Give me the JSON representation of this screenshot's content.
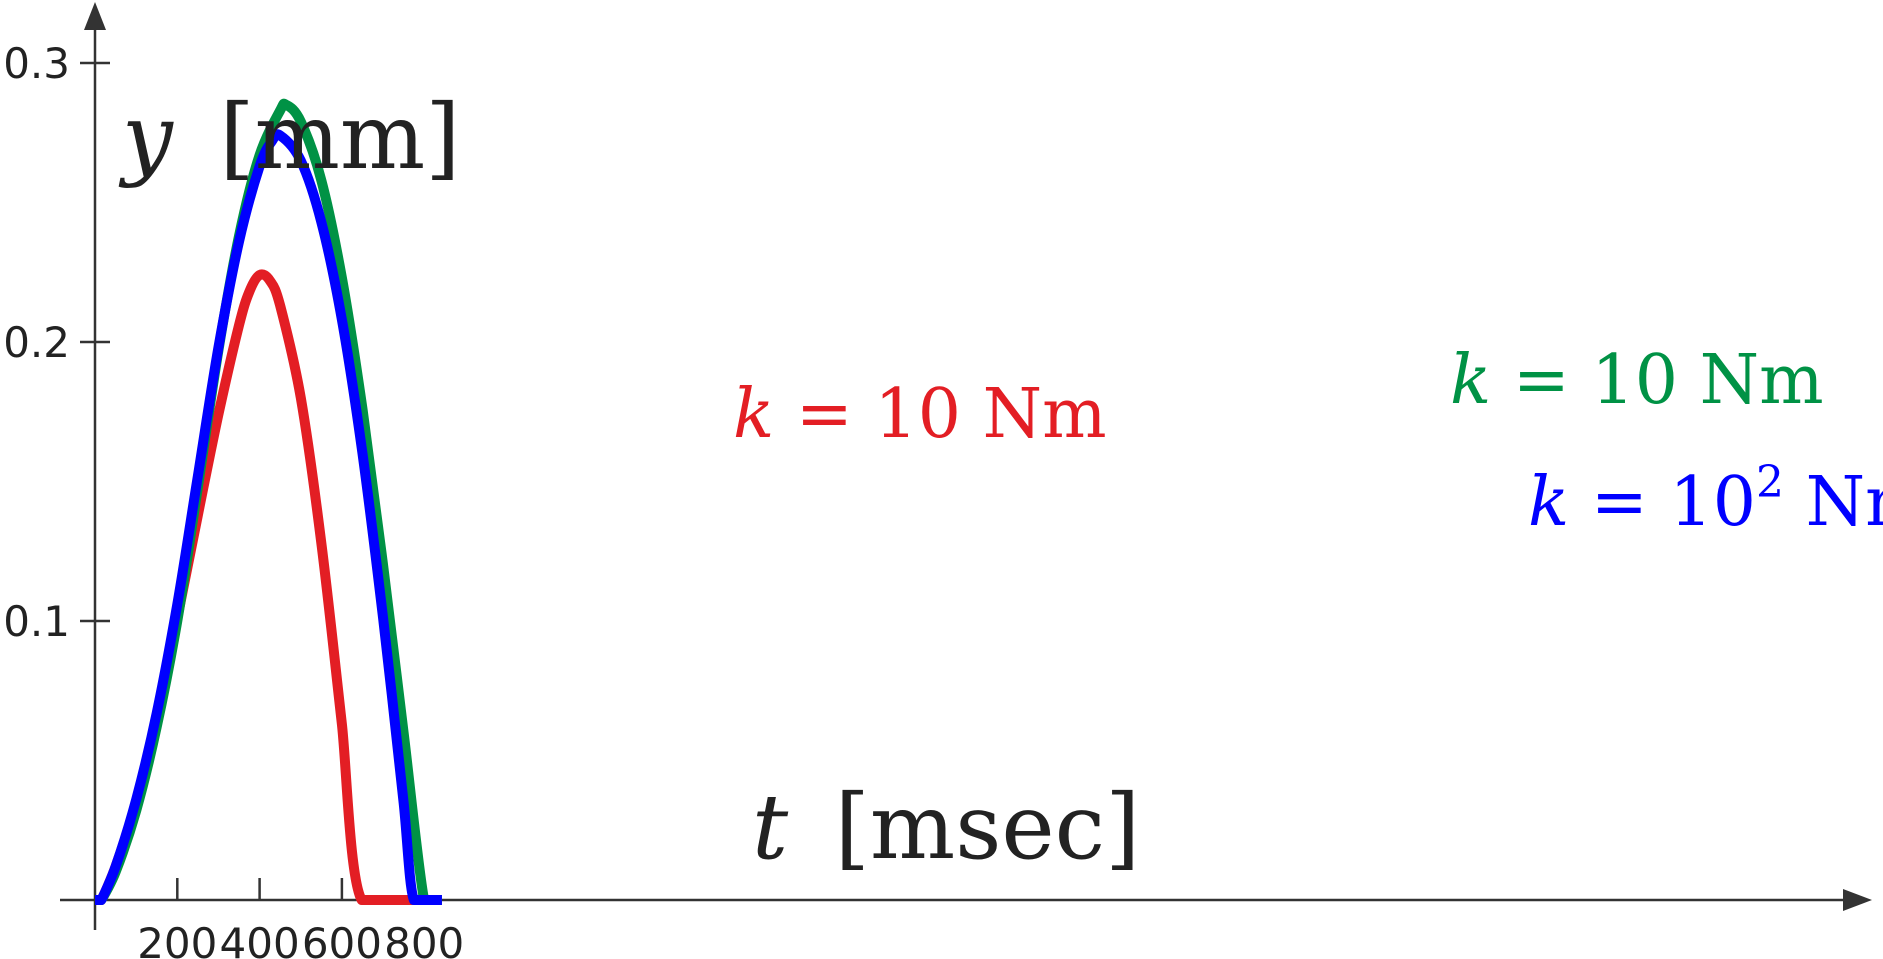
{
  "chart_data": {
    "type": "line",
    "xlabel": {
      "var": "t",
      "unit": "[msec]"
    },
    "ylabel": {
      "var": "y",
      "unit": "[mm]"
    },
    "xlim": [
      -3,
      852
    ],
    "ylim": [
      0,
      0.3
    ],
    "x_ticks": [
      200,
      400,
      600,
      800
    ],
    "x_tick_labels": [
      "200",
      "400",
      "600",
      "800"
    ],
    "y_ticks": [
      0.1,
      0.2,
      0.3
    ],
    "y_tick_labels": [
      "0.1",
      "0.2",
      "0.3"
    ],
    "grid": false,
    "legend": "inline labels",
    "series": [
      {
        "key": "red",
        "label_var": "k",
        "label_rest": " = 10  Nm",
        "label_sup": "",
        "label_tail": "",
        "color": "#e31e24",
        "points": [
          [
            0,
            0
          ],
          [
            15,
            0
          ],
          [
            50,
            0.012
          ],
          [
            100,
            0.035
          ],
          [
            150,
            0.065
          ],
          [
            200,
            0.101
          ],
          [
            250,
            0.138
          ],
          [
            300,
            0.174
          ],
          [
            350,
            0.206
          ],
          [
            375,
            0.218
          ],
          [
            400,
            0.224
          ],
          [
            425,
            0.222
          ],
          [
            450,
            0.213
          ],
          [
            500,
            0.18
          ],
          [
            550,
            0.128
          ],
          [
            600,
            0.063
          ],
          [
            648,
            0
          ],
          [
            843,
            0
          ]
        ]
      },
      {
        "key": "green",
        "label_var": "k",
        "label_rest": " = 10 Nm",
        "label_sup": "",
        "label_tail": "",
        "color": "#009245",
        "points": [
          [
            0,
            0
          ],
          [
            15,
            0
          ],
          [
            50,
            0.01
          ],
          [
            100,
            0.032
          ],
          [
            150,
            0.062
          ],
          [
            200,
            0.1
          ],
          [
            250,
            0.148
          ],
          [
            300,
            0.197
          ],
          [
            350,
            0.238
          ],
          [
            400,
            0.267
          ],
          [
            450,
            0.283
          ],
          [
            465,
            0.285
          ],
          [
            500,
            0.279
          ],
          [
            550,
            0.258
          ],
          [
            600,
            0.223
          ],
          [
            650,
            0.176
          ],
          [
            700,
            0.12
          ],
          [
            750,
            0.06
          ],
          [
            800,
            0
          ],
          [
            843,
            0
          ]
        ]
      },
      {
        "key": "blue",
        "label_var": "k",
        "label_rest": " = 10",
        "label_sup": "2",
        "label_tail": " Nm",
        "color": "#0000ff",
        "points": [
          [
            0,
            0
          ],
          [
            15,
            0
          ],
          [
            50,
            0.012
          ],
          [
            100,
            0.036
          ],
          [
            150,
            0.067
          ],
          [
            200,
            0.106
          ],
          [
            250,
            0.152
          ],
          [
            300,
            0.198
          ],
          [
            350,
            0.236
          ],
          [
            400,
            0.263
          ],
          [
            430,
            0.272
          ],
          [
            450,
            0.274
          ],
          [
            500,
            0.265
          ],
          [
            550,
            0.243
          ],
          [
            600,
            0.208
          ],
          [
            650,
            0.16
          ],
          [
            700,
            0.101
          ],
          [
            750,
            0.035
          ],
          [
            775,
            0
          ],
          [
            843,
            0
          ]
        ]
      }
    ]
  }
}
